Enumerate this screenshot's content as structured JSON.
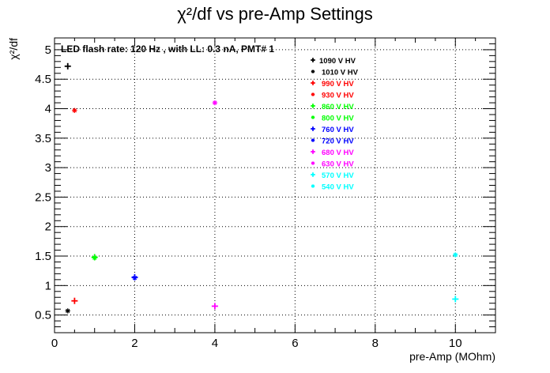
{
  "chart_data": {
    "type": "scatter",
    "title": "χ²/df vs pre-Amp Settings",
    "xlabel": "pre-Amp (MOhm)",
    "ylabel": "χ²/df",
    "annotation": "LED flash rate: 120 Hz , with LL: 0.3 nA, PMT# 1",
    "xlim": [
      0,
      11
    ],
    "ylim": [
      0.2,
      5.2
    ],
    "x_ticks": [
      0,
      2,
      4,
      6,
      8,
      10
    ],
    "y_ticks": [
      0.5,
      1,
      1.5,
      2,
      2.5,
      3,
      3.5,
      4,
      4.5,
      5
    ],
    "x_tick_labels": [
      "0",
      "2",
      "4",
      "6",
      "8",
      "10"
    ],
    "y_tick_labels": [
      "0.5",
      "1",
      "1.5",
      "2",
      "2.5",
      "3",
      "3.5",
      "4",
      "4.5",
      "5"
    ],
    "grid": true,
    "legend_position": "top-right",
    "series": [
      {
        "name": "1090 V HV",
        "color": "#000000",
        "marker": "plus",
        "x": [
          0.33
        ],
        "y": [
          4.72
        ]
      },
      {
        "name": "1010 V HV",
        "color": "#000000",
        "marker": "star",
        "x": [
          0.33
        ],
        "y": [
          0.57
        ]
      },
      {
        "name": "990 V HV",
        "color": "#ff0000",
        "marker": "plus",
        "x": [
          0.5
        ],
        "y": [
          0.74
        ]
      },
      {
        "name": "930 V HV",
        "color": "#ff0000",
        "marker": "star",
        "x": [
          0.5
        ],
        "y": [
          3.97
        ]
      },
      {
        "name": "860 V HV",
        "color": "#00ff00",
        "marker": "plus",
        "x": [
          1.0
        ],
        "y": [
          1.48
        ]
      },
      {
        "name": "800 V HV",
        "color": "#00ff00",
        "marker": "star",
        "x": [
          1.0
        ],
        "y": [
          1.47
        ]
      },
      {
        "name": "760 V HV",
        "color": "#0000ff",
        "marker": "plus",
        "x": [
          2.0
        ],
        "y": [
          1.14
        ]
      },
      {
        "name": "720 V HV",
        "color": "#0000ff",
        "marker": "star",
        "x": [
          2.0
        ],
        "y": [
          1.13
        ]
      },
      {
        "name": "680 V HV",
        "color": "#ff00ff",
        "marker": "plus",
        "x": [
          4.0
        ],
        "y": [
          0.65
        ]
      },
      {
        "name": "630 V HV",
        "color": "#ff00ff",
        "marker": "star",
        "x": [
          4.0
        ],
        "y": [
          4.1
        ]
      },
      {
        "name": "570 V HV",
        "color": "#00ffff",
        "marker": "plus",
        "x": [
          10.0
        ],
        "y": [
          0.77
        ]
      },
      {
        "name": "540 V HV",
        "color": "#00ffff",
        "marker": "star",
        "x": [
          10.0
        ],
        "y": [
          1.52
        ]
      }
    ]
  }
}
